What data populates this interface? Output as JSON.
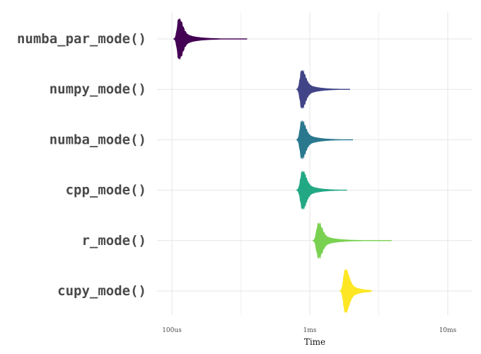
{
  "chart_data": {
    "type": "violin",
    "title": "",
    "xlabel": "Time",
    "ylabel": "",
    "x_scale": "log",
    "x_unit": "seconds",
    "xlim_seconds": [
      6.3e-05,
      0.00035
    ],
    "x_ticks": [
      {
        "value_seconds": 0.0001,
        "label": "100us"
      },
      {
        "value_seconds": 0.001,
        "label": "1ms"
      },
      {
        "value_seconds": 0.01,
        "label": "10ms"
      }
    ],
    "categories": [
      "numba_par_mode()",
      "numpy_mode()",
      "numba_mode()",
      "cpp_mode()",
      "r_mode()",
      "cupy_mode()"
    ],
    "series": [
      {
        "label": "numba_par_mode()",
        "color": "#440154",
        "median_seconds": 0.000112,
        "min_seconds": 0.000103,
        "max_seconds": 0.00035,
        "peak_half_width": 0.8
      },
      {
        "label": "numpy_mode()",
        "color": "#414487",
        "median_seconds": 0.00087,
        "min_seconds": 0.0008,
        "max_seconds": 0.00195,
        "peak_half_width": 0.75
      },
      {
        "label": "numba_mode()",
        "color": "#2a788e",
        "median_seconds": 0.00087,
        "min_seconds": 0.0008,
        "max_seconds": 0.00205,
        "peak_half_width": 0.75
      },
      {
        "label": "cpp_mode()",
        "color": "#22a884",
        "median_seconds": 0.00088,
        "min_seconds": 0.0008,
        "max_seconds": 0.00185,
        "peak_half_width": 0.75
      },
      {
        "label": "r_mode()",
        "color": "#7ad151",
        "median_seconds": 0.00115,
        "min_seconds": 0.00105,
        "max_seconds": 0.0039,
        "peak_half_width": 0.7
      },
      {
        "label": "cupy_mode()",
        "color": "#fde725",
        "median_seconds": 0.0018,
        "min_seconds": 0.00165,
        "max_seconds": 0.0028,
        "peak_half_width": 0.85
      }
    ],
    "grid": true,
    "legend": "none"
  }
}
